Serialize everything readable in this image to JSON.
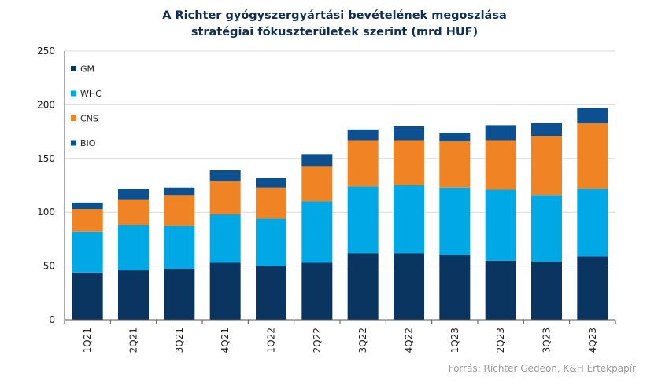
{
  "chart_data": {
    "type": "bar",
    "stacked": true,
    "title_line1": "A Richter gyógyszergyártási bevételének megoszlása",
    "title_line2": "stratégiai fókuszterületek szerint (mrd HUF)",
    "categories": [
      "1Q21",
      "2Q21",
      "3Q21",
      "4Q21",
      "1Q22",
      "2Q22",
      "3Q22",
      "4Q22",
      "1Q23",
      "2Q23",
      "3Q23",
      "4Q23"
    ],
    "series": [
      {
        "name": "GM",
        "color": "#0a3561",
        "values": [
          44,
          46,
          47,
          53,
          50,
          53,
          62,
          62,
          60,
          55,
          54,
          59
        ]
      },
      {
        "name": "WHC",
        "color": "#00a9e6",
        "values": [
          38,
          42,
          40,
          45,
          44,
          57,
          62,
          63,
          63,
          66,
          62,
          63
        ]
      },
      {
        "name": "CNS",
        "color": "#f08424",
        "values": [
          21,
          24,
          29,
          31,
          29,
          33,
          43,
          42,
          43,
          46,
          55,
          61
        ]
      },
      {
        "name": "BIO",
        "color": "#0d5091",
        "values": [
          6,
          10,
          7,
          10,
          9,
          11,
          10,
          13,
          8,
          14,
          12,
          14
        ]
      }
    ],
    "y_ticks": [
      "0",
      "50",
      "100",
      "150",
      "200",
      "250"
    ],
    "ylim": [
      0,
      250
    ],
    "grid": "horizontal",
    "legend_position": "top-left"
  },
  "source": "Forrás: Richter Gedeon, K&H Értékpapír"
}
